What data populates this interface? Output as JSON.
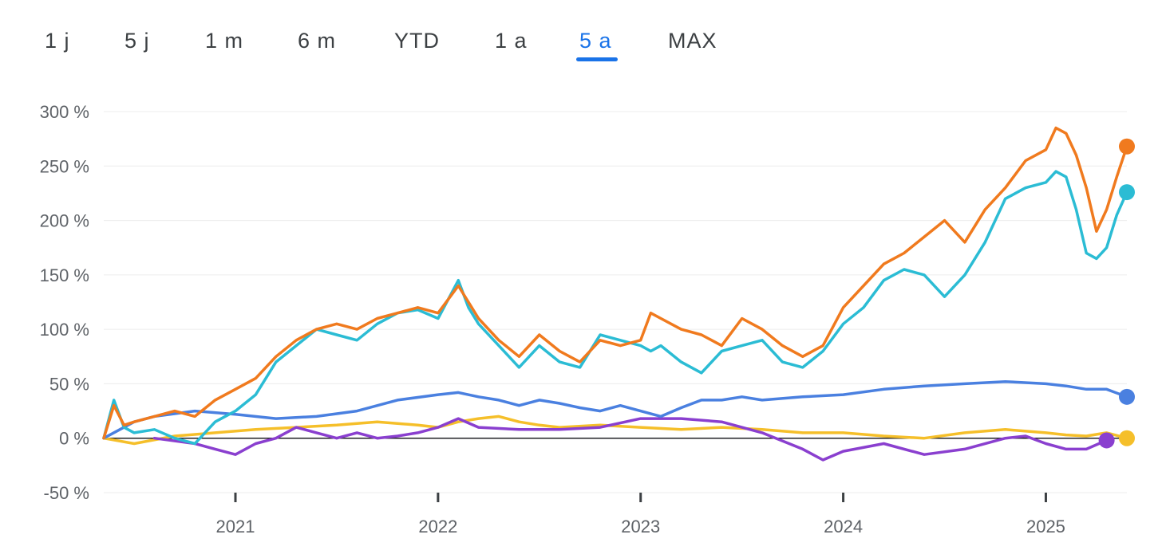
{
  "tabs": [
    {
      "label": "1 j"
    },
    {
      "label": "5 j"
    },
    {
      "label": "1 m"
    },
    {
      "label": "6 m"
    },
    {
      "label": "YTD"
    },
    {
      "label": "1 a"
    },
    {
      "label": "5 a",
      "active": true
    },
    {
      "label": "MAX"
    }
  ],
  "colors": {
    "active_tab": "#1a73e8",
    "series": [
      "#f07a1e",
      "#2bbcd4",
      "#4a80e0",
      "#f5bf2a",
      "#8a3fcf"
    ]
  },
  "chart_data": {
    "type": "line",
    "title": "",
    "xlabel": "",
    "ylabel": "",
    "ylim": [
      -50,
      300
    ],
    "xlim": [
      2020.35,
      2025.4
    ],
    "yticks": [
      300,
      250,
      200,
      150,
      100,
      50,
      0,
      -50
    ],
    "ytick_labels": [
      "300 %",
      "250 %",
      "200 %",
      "150 %",
      "100 %",
      "50 %",
      "0 %",
      "-50 %"
    ],
    "xticks": [
      2021,
      2022,
      2023,
      2024,
      2025
    ],
    "xtick_labels": [
      "2021",
      "2022",
      "2023",
      "2024",
      "2025"
    ],
    "grid": true,
    "zero_line": true,
    "legend": "none",
    "series": [
      {
        "x": [
          2020.35,
          2020.4,
          2020.45,
          2020.5,
          2020.6,
          2020.7,
          2020.8,
          2020.9,
          2021.0,
          2021.1,
          2021.2,
          2021.3,
          2021.4,
          2021.5,
          2021.6,
          2021.7,
          2021.8,
          2021.9,
          2022.0,
          2022.1,
          2022.15,
          2022.2,
          2022.3,
          2022.4,
          2022.5,
          2022.6,
          2022.7,
          2022.8,
          2022.9,
          2023.0,
          2023.05,
          2023.1,
          2023.2,
          2023.3,
          2023.4,
          2023.5,
          2023.6,
          2023.7,
          2023.8,
          2023.9,
          2024.0,
          2024.1,
          2024.2,
          2024.3,
          2024.4,
          2024.5,
          2024.6,
          2024.7,
          2024.8,
          2024.9,
          2025.0,
          2025.05,
          2025.1,
          2025.15,
          2025.2,
          2025.25,
          2025.3,
          2025.35,
          2025.4
        ],
        "y": [
          0,
          30,
          12,
          15,
          20,
          25,
          20,
          35,
          45,
          55,
          75,
          90,
          100,
          105,
          100,
          110,
          115,
          120,
          115,
          140,
          125,
          110,
          90,
          75,
          95,
          80,
          70,
          90,
          85,
          90,
          115,
          110,
          100,
          95,
          85,
          110,
          100,
          85,
          75,
          85,
          120,
          140,
          160,
          170,
          185,
          200,
          180,
          210,
          230,
          255,
          265,
          285,
          280,
          260,
          230,
          190,
          210,
          240,
          268
        ]
      },
      {
        "x": [
          2020.35,
          2020.4,
          2020.45,
          2020.5,
          2020.6,
          2020.7,
          2020.8,
          2020.9,
          2021.0,
          2021.1,
          2021.2,
          2021.3,
          2021.4,
          2021.5,
          2021.6,
          2021.7,
          2021.8,
          2021.9,
          2022.0,
          2022.1,
          2022.15,
          2022.2,
          2022.3,
          2022.4,
          2022.5,
          2022.6,
          2022.7,
          2022.8,
          2022.9,
          2023.0,
          2023.05,
          2023.1,
          2023.2,
          2023.3,
          2023.4,
          2023.5,
          2023.6,
          2023.7,
          2023.8,
          2023.9,
          2024.0,
          2024.1,
          2024.2,
          2024.3,
          2024.4,
          2024.5,
          2024.6,
          2024.7,
          2024.8,
          2024.9,
          2025.0,
          2025.05,
          2025.1,
          2025.15,
          2025.2,
          2025.25,
          2025.3,
          2025.35,
          2025.4
        ],
        "y": [
          0,
          35,
          10,
          5,
          8,
          0,
          -5,
          15,
          25,
          40,
          70,
          85,
          100,
          95,
          90,
          105,
          115,
          118,
          110,
          145,
          120,
          105,
          85,
          65,
          85,
          70,
          65,
          95,
          90,
          85,
          80,
          85,
          70,
          60,
          80,
          85,
          90,
          70,
          65,
          80,
          105,
          120,
          145,
          155,
          150,
          130,
          150,
          180,
          220,
          230,
          235,
          245,
          240,
          210,
          170,
          165,
          175,
          205,
          226
        ]
      },
      {
        "x": [
          2020.35,
          2020.5,
          2020.6,
          2020.8,
          2021.0,
          2021.2,
          2021.4,
          2021.6,
          2021.8,
          2022.0,
          2022.1,
          2022.2,
          2022.3,
          2022.4,
          2022.5,
          2022.6,
          2022.7,
          2022.8,
          2022.9,
          2023.0,
          2023.1,
          2023.2,
          2023.3,
          2023.4,
          2023.5,
          2023.6,
          2023.8,
          2024.0,
          2024.2,
          2024.4,
          2024.6,
          2024.8,
          2025.0,
          2025.1,
          2025.2,
          2025.3,
          2025.4
        ],
        "y": [
          0,
          15,
          20,
          25,
          22,
          18,
          20,
          25,
          35,
          40,
          42,
          38,
          35,
          30,
          35,
          32,
          28,
          25,
          30,
          25,
          20,
          28,
          35,
          35,
          38,
          35,
          38,
          40,
          45,
          48,
          50,
          52,
          50,
          48,
          45,
          45,
          38
        ]
      },
      {
        "x": [
          2020.35,
          2020.5,
          2020.7,
          2020.9,
          2021.1,
          2021.3,
          2021.5,
          2021.7,
          2021.9,
          2022.0,
          2022.1,
          2022.2,
          2022.3,
          2022.4,
          2022.5,
          2022.6,
          2022.8,
          2023.0,
          2023.2,
          2023.4,
          2023.6,
          2023.8,
          2024.0,
          2024.2,
          2024.4,
          2024.6,
          2024.8,
          2025.0,
          2025.1,
          2025.2,
          2025.3,
          2025.4
        ],
        "y": [
          0,
          -5,
          2,
          5,
          8,
          10,
          12,
          15,
          12,
          10,
          15,
          18,
          20,
          15,
          12,
          10,
          12,
          10,
          8,
          10,
          8,
          5,
          5,
          2,
          0,
          5,
          8,
          5,
          3,
          2,
          5,
          0
        ]
      },
      {
        "x": [
          2020.6,
          2020.8,
          2020.9,
          2021.0,
          2021.1,
          2021.2,
          2021.3,
          2021.4,
          2021.5,
          2021.6,
          2021.7,
          2021.8,
          2021.9,
          2022.0,
          2022.1,
          2022.2,
          2022.4,
          2022.6,
          2022.8,
          2023.0,
          2023.2,
          2023.4,
          2023.6,
          2023.8,
          2023.9,
          2024.0,
          2024.2,
          2024.4,
          2024.6,
          2024.8,
          2024.9,
          2025.0,
          2025.1,
          2025.2,
          2025.3
        ],
        "y": [
          0,
          -5,
          -10,
          -15,
          -5,
          0,
          10,
          5,
          0,
          5,
          0,
          2,
          5,
          10,
          18,
          10,
          8,
          8,
          10,
          18,
          18,
          15,
          5,
          -10,
          -20,
          -12,
          -5,
          -15,
          -10,
          0,
          2,
          -5,
          -10,
          -10,
          -2
        ]
      }
    ]
  }
}
